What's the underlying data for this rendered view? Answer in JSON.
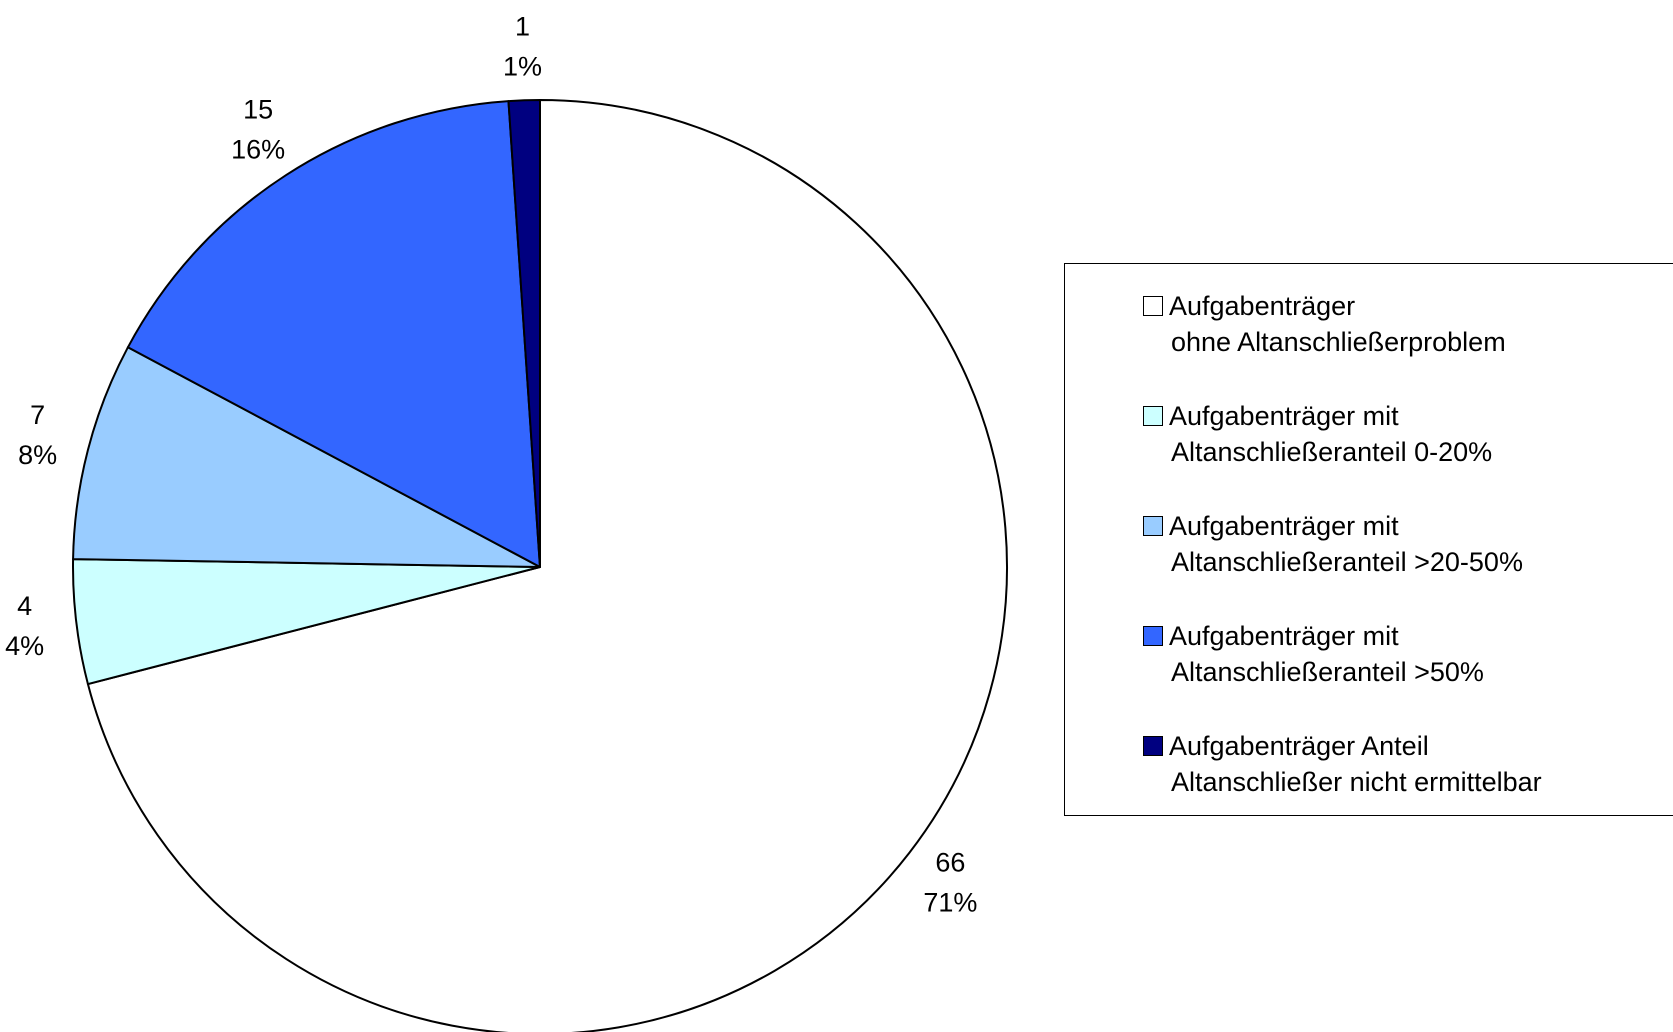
{
  "chart_data": {
    "type": "pie",
    "title": "",
    "legend_position": "right",
    "start_angle_deg": 0,
    "direction": "clockwise",
    "slices": [
      {
        "label_lines": [
          "Aufgabenträger",
          "ohne Altanschließerproblem"
        ],
        "value": 66,
        "value_label": "66",
        "percent_label": "71%",
        "color": "#FFFFFF"
      },
      {
        "label_lines": [
          "Aufgabenträger mit",
          "Altanschließeranteil 0-20%"
        ],
        "value": 4,
        "value_label": "4",
        "percent_label": "4%",
        "color": "#CCFFFF"
      },
      {
        "label_lines": [
          "Aufgabenträger mit",
          "Altanschließeranteil >20-50%"
        ],
        "value": 7,
        "value_label": "7",
        "percent_label": "8%",
        "color": "#99CCFF"
      },
      {
        "label_lines": [
          "Aufgabenträger mit",
          "Altanschließeranteil >50%"
        ],
        "value": 15,
        "value_label": "15",
        "percent_label": "16%",
        "color": "#3366FF"
      },
      {
        "label_lines": [
          "Aufgabenträger Anteil",
          "Altanschließer nicht ermittelbar"
        ],
        "value": 1,
        "value_label": "1",
        "percent_label": "1%",
        "color": "#000080"
      }
    ]
  }
}
